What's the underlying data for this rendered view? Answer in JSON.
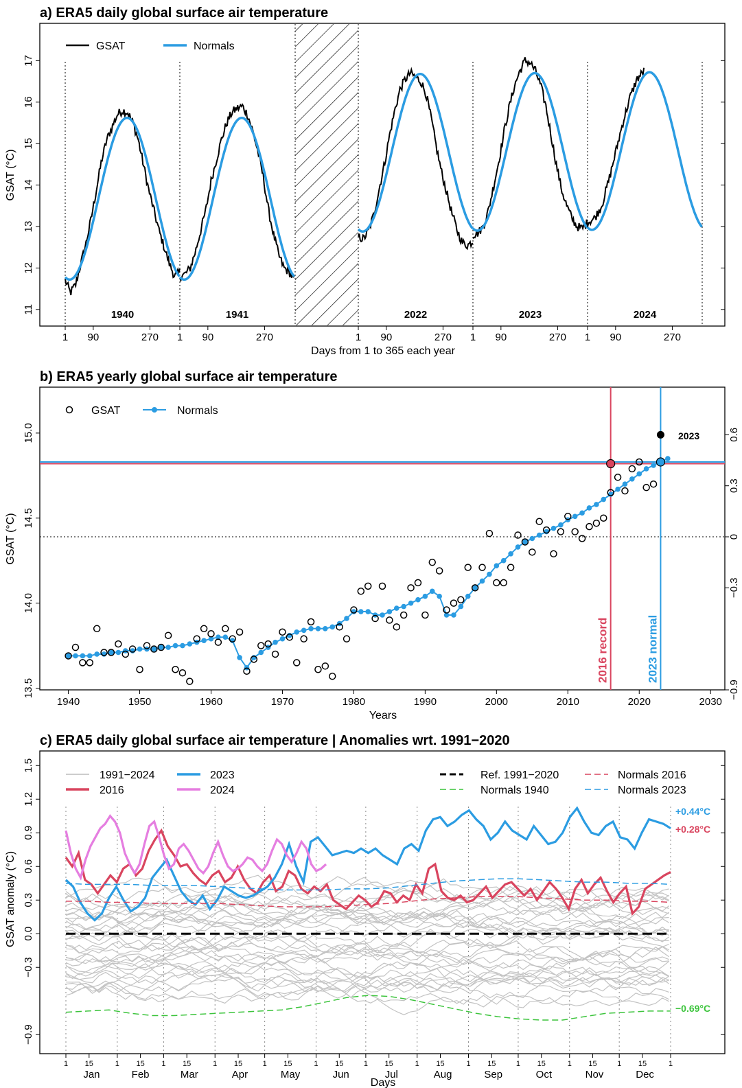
{
  "chart_data": [
    {
      "type": "line",
      "title": "a) ERA5 daily global surface air temperature",
      "xlabel": "Days from 1 to 365 each year",
      "ylabel": "GSAT (°C)",
      "ylim": [
        10.6,
        17.9
      ],
      "yticks": [
        "11",
        "12",
        "13",
        "14",
        "15",
        "16",
        "17"
      ],
      "xticks": [
        "1",
        "90",
        "270"
      ],
      "years": [
        "1940",
        "1941",
        "2022",
        "2023",
        "2024"
      ],
      "legend": [
        "GSAT",
        "Normals"
      ],
      "series": [
        {
          "name": "Normals",
          "color": "#2b9ce2",
          "years": [
            "1940",
            "1941",
            "2022",
            "2023",
            "2024"
          ],
          "mean": [
            13.67,
            13.67,
            14.78,
            14.8,
            14.82
          ],
          "amplitude": [
            1.95,
            1.95,
            1.9,
            1.9,
            1.9
          ]
        },
        {
          "name": "GSAT",
          "color": "#000000",
          "note_values": [
            [
              11.7,
              11.4,
              11.6,
              12.1,
              12.6,
              13.2,
              13.9,
              14.6,
              15.1,
              15.4,
              15.7,
              15.8,
              15.75,
              15.5,
              15.1,
              14.5,
              13.9,
              13.4,
              12.9,
              12.5,
              12.1,
              11.8,
              11.9
            ],
            [
              11.8,
              11.85,
              12.0,
              12.4,
              12.9,
              13.4,
              14.1,
              14.6,
              15.1,
              15.5,
              15.75,
              15.85,
              15.9,
              15.7,
              15.3,
              14.8,
              14.2,
              13.4,
              12.8,
              12.3,
              12.0,
              11.9,
              11.7
            ],
            [
              12.75,
              12.7,
              12.9,
              13.3,
              13.9,
              14.5,
              15.2,
              15.8,
              16.3,
              16.55,
              16.7,
              16.6,
              16.5,
              16.2,
              15.6,
              14.9,
              14.3,
              13.8,
              13.3,
              12.9,
              12.6,
              12.55,
              12.65
            ],
            [
              12.8,
              12.85,
              13.0,
              13.4,
              14.0,
              14.6,
              15.3,
              15.9,
              16.4,
              16.75,
              17.0,
              16.95,
              16.75,
              16.4,
              15.9,
              15.2,
              14.5,
              13.9,
              13.5,
              13.2,
              13.0,
              12.95,
              13.1
            ],
            [
              13.1,
              13.2,
              13.5,
              14.1,
              14.8,
              15.5,
              16.1,
              16.55,
              16.75
            ]
          ]
        }
      ]
    },
    {
      "type": "scatter",
      "title": "b) ERA5 yearly global surface air temperature",
      "xlabel": "Years",
      "ylabel": "GSAT (°C)",
      "xlim": [
        1936,
        2032
      ],
      "ylim": [
        13.49,
        15.27
      ],
      "xticks": [
        "1940",
        "1950",
        "1960",
        "1970",
        "1980",
        "1990",
        "2000",
        "2010",
        "2020",
        "2030"
      ],
      "yticks": [
        "13.5",
        "14.0",
        "14.5",
        "15.0"
      ],
      "y2ticks": [
        "0.6",
        "0.3",
        "0",
        "−0.3",
        "−0.9"
      ],
      "legend": [
        "GSAT",
        "Normals"
      ],
      "annotations": {
        "record_label": "2016 record",
        "normal_label": "2023 normal",
        "point_label": "2023"
      },
      "hlines": {
        "record": 14.82,
        "normal": 14.83,
        "zero": 14.39
      },
      "vlines": {
        "record": 2016,
        "normal": 2023
      },
      "gsat": [
        13.69,
        13.74,
        13.65,
        13.65,
        13.85,
        13.71,
        13.71,
        13.76,
        13.7,
        13.73,
        13.61,
        13.75,
        13.73,
        13.74,
        13.81,
        13.61,
        13.59,
        13.54,
        13.79,
        13.85,
        13.82,
        13.77,
        13.85,
        13.79,
        13.83,
        13.6,
        13.67,
        13.75,
        13.76,
        13.7,
        13.83,
        13.8,
        13.65,
        13.79,
        13.89,
        13.61,
        13.63,
        13.57,
        13.86,
        13.79,
        13.96,
        14.07,
        14.1,
        13.91,
        14.1,
        13.9,
        13.86,
        13.93,
        14.09,
        14.12,
        13.93,
        14.24,
        14.19,
        13.96,
        14.0,
        14.02,
        14.21,
        14.09,
        14.21,
        14.41,
        14.12,
        14.12,
        14.21,
        14.4,
        14.36,
        14.3,
        14.48,
        14.43,
        14.29,
        14.42,
        14.51,
        14.42,
        14.38,
        14.45,
        14.47,
        14.5,
        14.65,
        14.74,
        14.66,
        14.79,
        14.83,
        14.68,
        14.7,
        14.99
      ],
      "normals": [
        13.69,
        13.69,
        13.69,
        13.69,
        13.7,
        13.7,
        13.71,
        13.71,
        13.72,
        13.72,
        13.73,
        13.73,
        13.73,
        13.74,
        13.74,
        13.75,
        13.75,
        13.76,
        13.77,
        13.78,
        13.79,
        13.8,
        13.8,
        13.78,
        13.68,
        13.62,
        13.68,
        13.71,
        13.74,
        13.77,
        13.79,
        13.81,
        13.83,
        13.84,
        13.85,
        13.85,
        13.85,
        13.86,
        13.88,
        13.91,
        13.95,
        13.95,
        13.95,
        13.93,
        13.93,
        13.95,
        13.97,
        13.98,
        14.0,
        14.02,
        14.04,
        14.07,
        14.04,
        13.93,
        13.93,
        13.98,
        14.04,
        14.09,
        14.13,
        14.17,
        14.22,
        14.25,
        14.29,
        14.33,
        14.36,
        14.38,
        14.4,
        14.42,
        14.44,
        14.46,
        14.49,
        14.51,
        14.53,
        14.56,
        14.58,
        14.61,
        14.64,
        14.67,
        14.7,
        14.73,
        14.76,
        14.79,
        14.81,
        14.83,
        14.85
      ]
    },
    {
      "type": "line",
      "title": "c) ERA5 daily global surface air temperature | Anomalies wrt. 1991−2020",
      "xlabel": "Days",
      "ylabel": "GSAT anomaly (°C)",
      "ylim": [
        -1.07,
        1.63
      ],
      "yticks": [
        "−0.9",
        "−0.3",
        "0.0",
        "0.3",
        "0.6",
        "0.9",
        "1.2",
        "1.5"
      ],
      "months": [
        "Jan",
        "Feb",
        "Mar",
        "Apr",
        "May",
        "Jun",
        "Jul",
        "Aug",
        "Sep",
        "Oct",
        "Nov",
        "Dec"
      ],
      "minor_ticks": [
        "1",
        "15"
      ],
      "legend": [
        "1991−2024",
        "2016",
        "2023",
        "2024",
        "Ref. 1991−2020",
        "Normals 1940",
        "Normals 2016",
        "Normals 2023"
      ],
      "end_labels": {
        "normals_2023": "+0.44°C",
        "normals_2016": "+0.28°C",
        "normals_1940": "−0.69°C"
      },
      "series": [
        {
          "name": "2016",
          "color": "#d9455f",
          "values": [
            0.68,
            0.6,
            0.72,
            0.48,
            0.44,
            0.36,
            0.44,
            0.52,
            0.46,
            0.58,
            0.62,
            0.52,
            0.58,
            0.74,
            0.84,
            0.92,
            0.78,
            0.7,
            0.6,
            0.62,
            0.54,
            0.48,
            0.44,
            0.52,
            0.56,
            0.46,
            0.5,
            0.6,
            0.48,
            0.4,
            0.36,
            0.46,
            0.52,
            0.38,
            0.42,
            0.56,
            0.52,
            0.4,
            0.36,
            0.42,
            0.38,
            0.44,
            0.3,
            0.26,
            0.22,
            0.28,
            0.34,
            0.3,
            0.24,
            0.28,
            0.38,
            0.36,
            0.28,
            0.34,
            0.3,
            0.44,
            0.36,
            0.58,
            0.62,
            0.38,
            0.32,
            0.3,
            0.34,
            0.28,
            0.3,
            0.36,
            0.42,
            0.32,
            0.38,
            0.44,
            0.46,
            0.4,
            0.34,
            0.4,
            0.3,
            0.38,
            0.46,
            0.4,
            0.32,
            0.22,
            0.4,
            0.48,
            0.36,
            0.44,
            0.5,
            0.38,
            0.28,
            0.36,
            0.42,
            0.18,
            0.24,
            0.4,
            0.44,
            0.48,
            0.52,
            0.55
          ]
        },
        {
          "name": "2023",
          "color": "#2b9ce2",
          "values": [
            0.48,
            0.42,
            0.28,
            0.18,
            0.12,
            0.18,
            0.32,
            0.42,
            0.3,
            0.2,
            0.24,
            0.32,
            0.5,
            0.58,
            0.66,
            0.52,
            0.38,
            0.3,
            0.26,
            0.34,
            0.22,
            0.3,
            0.42,
            0.38,
            0.34,
            0.32,
            0.34,
            0.38,
            0.42,
            0.5,
            0.62,
            0.8,
            0.6,
            0.46,
            0.82,
            0.86,
            0.78,
            0.7,
            0.72,
            0.74,
            0.72,
            0.76,
            0.72,
            0.76,
            0.7,
            0.66,
            0.62,
            0.76,
            0.8,
            0.74,
            0.92,
            1.02,
            1.04,
            0.96,
            1.0,
            1.06,
            1.1,
            1.02,
            0.96,
            0.84,
            0.9,
            1.0,
            0.92,
            0.88,
            0.84,
            0.96,
            0.88,
            0.8,
            0.82,
            0.9,
            1.04,
            1.12,
            1.0,
            0.9,
            0.88,
            0.96,
            1.0,
            0.86,
            0.84,
            0.76,
            0.9,
            1.02,
            1.0,
            0.98,
            0.94
          ]
        },
        {
          "name": "2024",
          "color": "#e57ee0",
          "values": [
            0.92,
            0.72,
            0.58,
            0.5,
            0.66,
            0.78,
            0.86,
            0.94,
            0.98,
            1.05,
            1.0,
            0.9,
            0.72,
            0.62,
            0.54,
            0.62,
            0.8,
            0.96,
            1.0,
            0.86,
            0.7,
            0.58,
            0.62,
            0.76,
            0.8,
            0.74,
            0.66,
            0.58,
            0.54,
            0.6,
            0.72,
            0.82,
            0.7,
            0.6,
            0.56,
            0.58,
            0.62,
            0.68,
            0.66,
            0.6,
            0.56,
            0.62,
            0.74,
            0.84,
            0.8,
            0.7,
            0.64,
            0.72,
            0.82,
            0.76,
            0.62,
            0.56,
            0.58,
            0.62
          ]
        },
        {
          "name": "Normals 2023",
          "color": "#2b9ce2",
          "values": [
            0.45,
            0.44,
            0.44,
            0.44,
            0.43,
            0.43,
            0.43,
            0.42,
            0.41,
            0.4,
            0.39,
            0.39,
            0.39,
            0.4,
            0.4,
            0.41,
            0.43,
            0.45,
            0.47,
            0.48,
            0.49,
            0.49,
            0.48,
            0.47,
            0.46,
            0.46,
            0.45,
            0.45,
            0.44
          ]
        },
        {
          "name": "Normals 2016",
          "color": "#d9455f",
          "values": [
            0.29,
            0.29,
            0.28,
            0.28,
            0.27,
            0.27,
            0.27,
            0.27,
            0.26,
            0.25,
            0.24,
            0.24,
            0.24,
            0.25,
            0.26,
            0.27,
            0.29,
            0.31,
            0.32,
            0.33,
            0.33,
            0.33,
            0.32,
            0.31,
            0.3,
            0.3,
            0.29,
            0.29,
            0.28
          ]
        },
        {
          "name": "Normals 1940",
          "color": "#3cc43c",
          "values": [
            -0.7,
            -0.69,
            -0.68,
            -0.71,
            -0.73,
            -0.73,
            -0.72,
            -0.71,
            -0.7,
            -0.69,
            -0.68,
            -0.65,
            -0.61,
            -0.57,
            -0.55,
            -0.56,
            -0.59,
            -0.63,
            -0.67,
            -0.71,
            -0.74,
            -0.76,
            -0.77,
            -0.77,
            -0.74,
            -0.71,
            -0.7,
            -0.69,
            -0.69
          ]
        }
      ]
    }
  ]
}
